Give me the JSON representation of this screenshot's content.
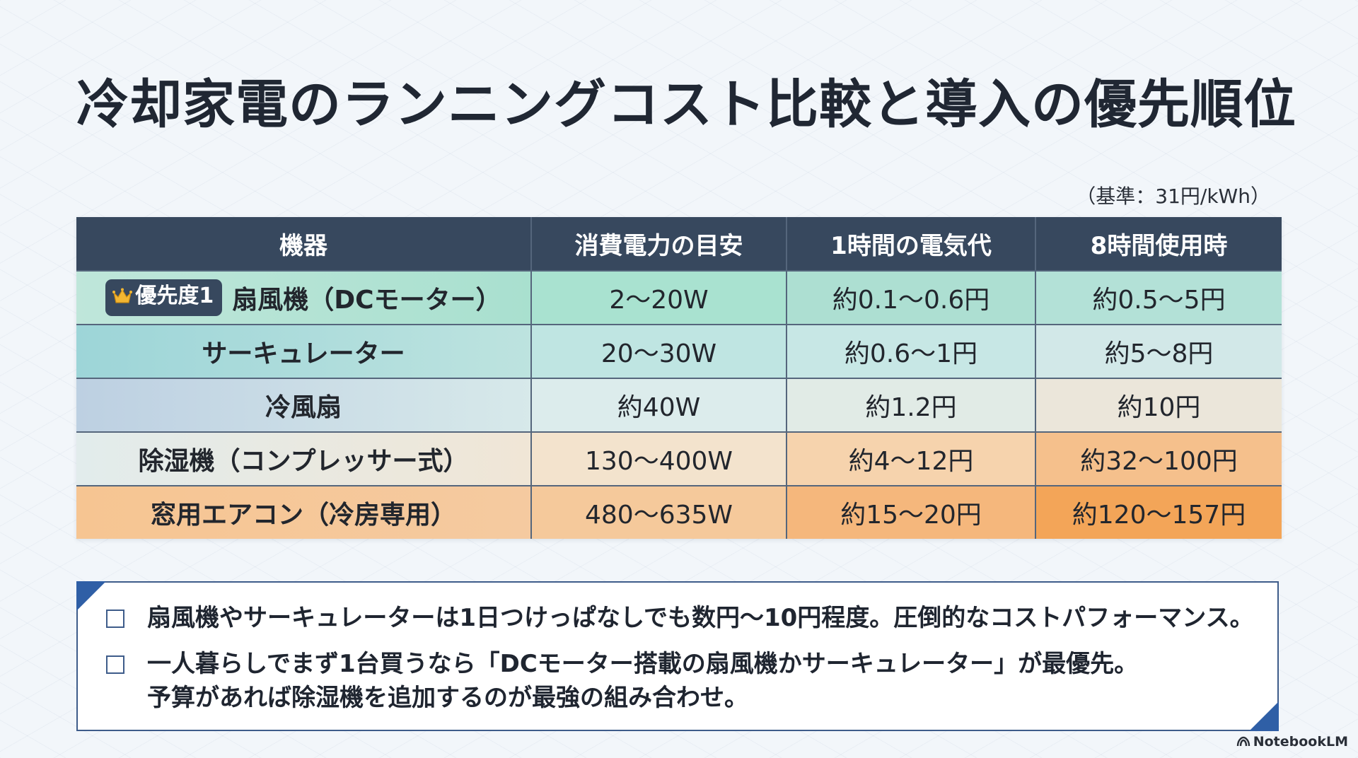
{
  "title": "冷却家電のランニングコスト比較と導入の優先順位",
  "basis_note": "（基準：31円/kWh）",
  "table": {
    "headers": [
      "機器",
      "消費電力の目安",
      "1時間の電気代",
      "8時間使用時"
    ],
    "rows": [
      {
        "badge": "優先度1",
        "device": "扇風機（DCモーター）",
        "power": "2～20W",
        "hourly": "約0.1～0.6円",
        "eight_hours": "約0.5～5円"
      },
      {
        "device": "サーキュレーター",
        "power": "20～30W",
        "hourly": "約0.6～1円",
        "eight_hours": "約5～8円"
      },
      {
        "device": "冷風扇",
        "power": "約40W",
        "hourly": "約1.2円",
        "eight_hours": "約10円"
      },
      {
        "device": "除湿機（コンプレッサー式）",
        "power": "130～400W",
        "hourly": "約4～12円",
        "eight_hours": "約32～100円"
      },
      {
        "device": "窓用エアコン（冷房専用）",
        "power": "480～635W",
        "hourly": "約15～20円",
        "eight_hours": "約120～157円"
      }
    ]
  },
  "notes": [
    "扇風機やサーキュレーターは1日つけっぱなしでも数円～10円程度。圧倒的なコストパフォーマンス。",
    "一人暮らしでまず1台買うなら「DCモーター搭載の扇風機かサーキュレーター」が最優先。\n予算があれば除湿機を追加するのが最強の組み合わせ。"
  ],
  "brand": "NotebookLM",
  "icons": {
    "badge": "crown-icon",
    "notes": "checkbox-icon",
    "brand": "notebooklm-logo-icon"
  },
  "colors": {
    "header_bg": "#37485e",
    "accent": "#2f5fa6",
    "low_cost": "#a9e2d0",
    "high_cost": "#f3a558"
  }
}
